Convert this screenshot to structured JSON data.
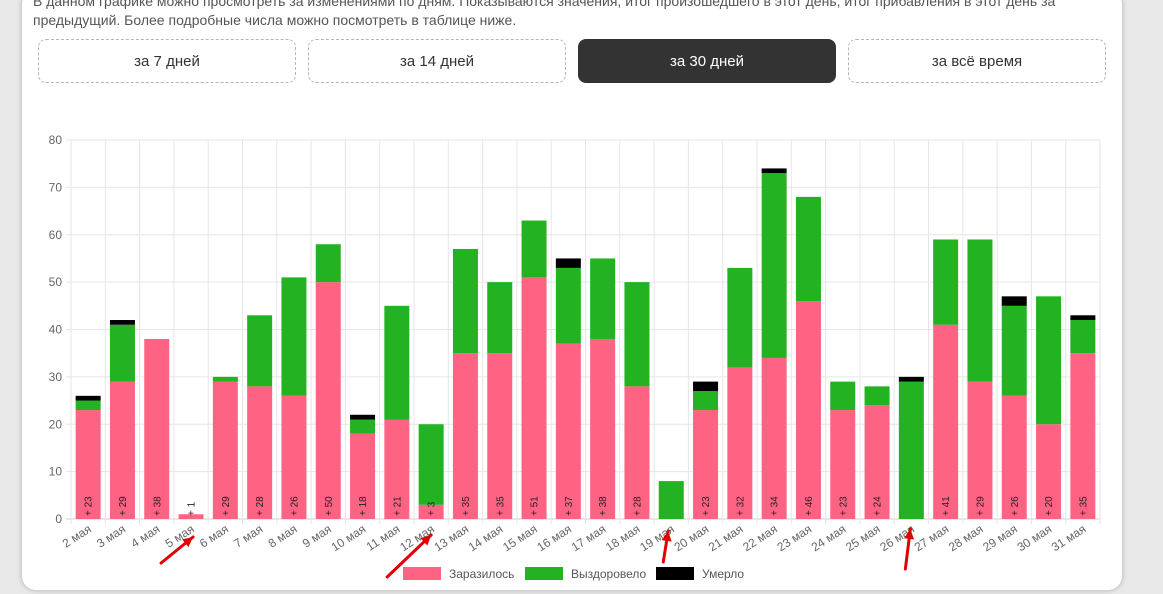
{
  "description": {
    "line1": "В данном графике можно просмотреть за изменениями по дням. Показываются значения, итог произошедшего в этот день, итог прибавления в этот день за",
    "line2": "предыдущий. Более подробные числа можно посмотреть в таблице ниже."
  },
  "tabs": [
    {
      "label": "за 7 дней",
      "active": false
    },
    {
      "label": "за 14 дней",
      "active": false
    },
    {
      "label": "за 30 дней",
      "active": true
    },
    {
      "label": "за всё время",
      "active": false
    }
  ],
  "colors": {
    "infected": "#ff6384",
    "recovered": "#22b222",
    "died": "#000000",
    "arrow": "#e00000"
  },
  "chart_data": {
    "type": "bar",
    "stacked": true,
    "categories": [
      "2 мая",
      "3 мая",
      "4 мая",
      "5 мая",
      "6 мая",
      "7 мая",
      "8 мая",
      "9 мая",
      "10 мая",
      "11 мая",
      "12 мая",
      "13 мая",
      "14 мая",
      "15 мая",
      "16 мая",
      "17 мая",
      "18 мая",
      "19 мая",
      "20 мая",
      "21 мая",
      "22 мая",
      "23 мая",
      "24 мая",
      "25 мая",
      "26 мая",
      "27 мая",
      "28 мая",
      "29 мая",
      "30 мая",
      "31 мая"
    ],
    "series": [
      {
        "name": "Заразилось",
        "color": "#ff6384",
        "values": [
          23,
          29,
          38,
          1,
          29,
          28,
          26,
          50,
          18,
          21,
          3,
          35,
          35,
          51,
          37,
          38,
          28,
          0,
          23,
          32,
          34,
          46,
          23,
          24,
          0,
          41,
          29,
          26,
          20,
          35
        ]
      },
      {
        "name": "Выздоровело",
        "color": "#22b222",
        "values": [
          2,
          12,
          0,
          0,
          1,
          15,
          25,
          8,
          3,
          24,
          17,
          22,
          15,
          12,
          16,
          17,
          22,
          8,
          4,
          21,
          39,
          22,
          6,
          4,
          29,
          18,
          30,
          19,
          27,
          7
        ]
      },
      {
        "name": "Умерло",
        "color": "#000000",
        "values": [
          1,
          1,
          0,
          0,
          0,
          0,
          0,
          0,
          1,
          0,
          0,
          0,
          0,
          0,
          2,
          0,
          0,
          0,
          2,
          0,
          1,
          0,
          0,
          0,
          1,
          0,
          0,
          2,
          0,
          1
        ]
      }
    ],
    "bar_labels": [
      "+ 23",
      "+ 29",
      "+ 38",
      "+ 1",
      "+ 29",
      "+ 28",
      "+ 26",
      "+ 50",
      "+ 18",
      "+ 21",
      "+ 3",
      "+ 35",
      "+ 35",
      "+ 51",
      "+ 37",
      "+ 38",
      "+ 28",
      "",
      "+ 23",
      "+ 32",
      "+ 34",
      "+ 46",
      "+ 23",
      "+ 24",
      "",
      "+ 41",
      "+ 29",
      "+ 26",
      "+ 20",
      "+ 35"
    ],
    "ylim": [
      0,
      80
    ],
    "yticks": [
      0,
      10,
      20,
      30,
      40,
      50,
      60,
      70,
      80
    ],
    "grid": true,
    "legend": "bottom",
    "arrow_categories": [
      "5 мая",
      "12 мая",
      "19 мая",
      "26 мая"
    ]
  }
}
